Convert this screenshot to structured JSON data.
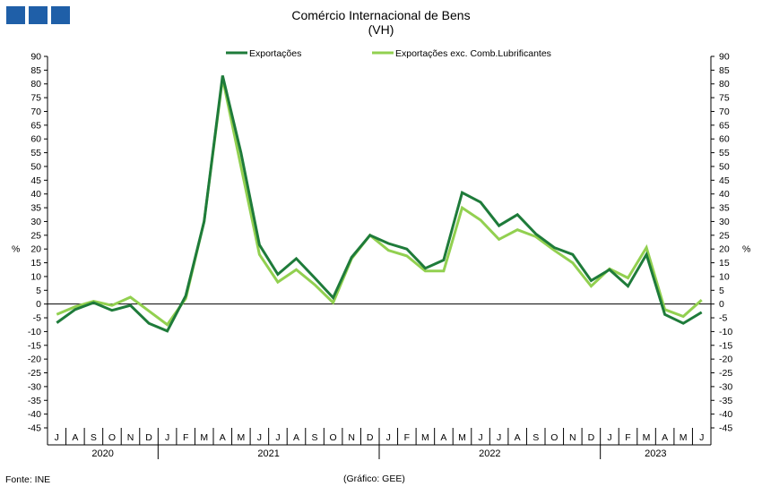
{
  "header": {
    "title": "Comércio Internacional de Bens",
    "subtitle": "(VH)"
  },
  "footer": {
    "source": "Fonte: INE",
    "credit": "(Gráfico: GEE)"
  },
  "logo": {
    "color": "#1f5fa8",
    "count": 3
  },
  "chart_data": {
    "type": "line",
    "title": "Comércio Internacional de Bens",
    "subtitle": "(VH)",
    "ylabel_left": "%",
    "ylabel_right": "%",
    "ylim": [
      -45,
      90
    ],
    "ytick_step": 5,
    "grid": false,
    "legend_position": "top",
    "categories": [
      "J",
      "A",
      "S",
      "O",
      "N",
      "D",
      "J",
      "F",
      "M",
      "A",
      "M",
      "J",
      "J",
      "A",
      "S",
      "O",
      "N",
      "D",
      "J",
      "F",
      "M",
      "A",
      "M",
      "J",
      "J",
      "A",
      "S",
      "O",
      "N",
      "D",
      "J",
      "F",
      "M",
      "A",
      "M",
      "J"
    ],
    "years": [
      {
        "label": "2020",
        "start": 0,
        "end": 5
      },
      {
        "label": "2021",
        "start": 6,
        "end": 17
      },
      {
        "label": "2022",
        "start": 18,
        "end": 29
      },
      {
        "label": "2023",
        "start": 30,
        "end": 35
      }
    ],
    "series": [
      {
        "name": "Exportações",
        "color": "#1e7b3a",
        "values": [
          -6.8,
          -2.0,
          0.5,
          -2.3,
          -0.5,
          -7.0,
          -9.8,
          3.0,
          30.0,
          83.0,
          55.0,
          21.5,
          10.8,
          16.5,
          9.5,
          2.3,
          17.0,
          25.0,
          22.0,
          20.0,
          13.0,
          16.0,
          40.5,
          37.0,
          28.5,
          32.5,
          25.5,
          20.5,
          18.0,
          8.5,
          12.5,
          6.5,
          18.0,
          -3.8,
          -7.0,
          -3.0
        ]
      },
      {
        "name": "Exportações exc. Comb.Lubrificantes",
        "color": "#92d050",
        "values": [
          -3.8,
          -1.0,
          1.0,
          -0.5,
          2.5,
          -2.5,
          -7.5,
          2.0,
          30.0,
          82.0,
          50.0,
          18.0,
          8.0,
          12.5,
          7.0,
          0.5,
          16.5,
          25.0,
          19.5,
          17.5,
          12.0,
          12.0,
          35.0,
          30.5,
          23.5,
          27.0,
          24.5,
          19.5,
          15.0,
          6.5,
          12.8,
          9.5,
          20.5,
          -2.0,
          -4.5,
          1.5
        ]
      }
    ]
  }
}
